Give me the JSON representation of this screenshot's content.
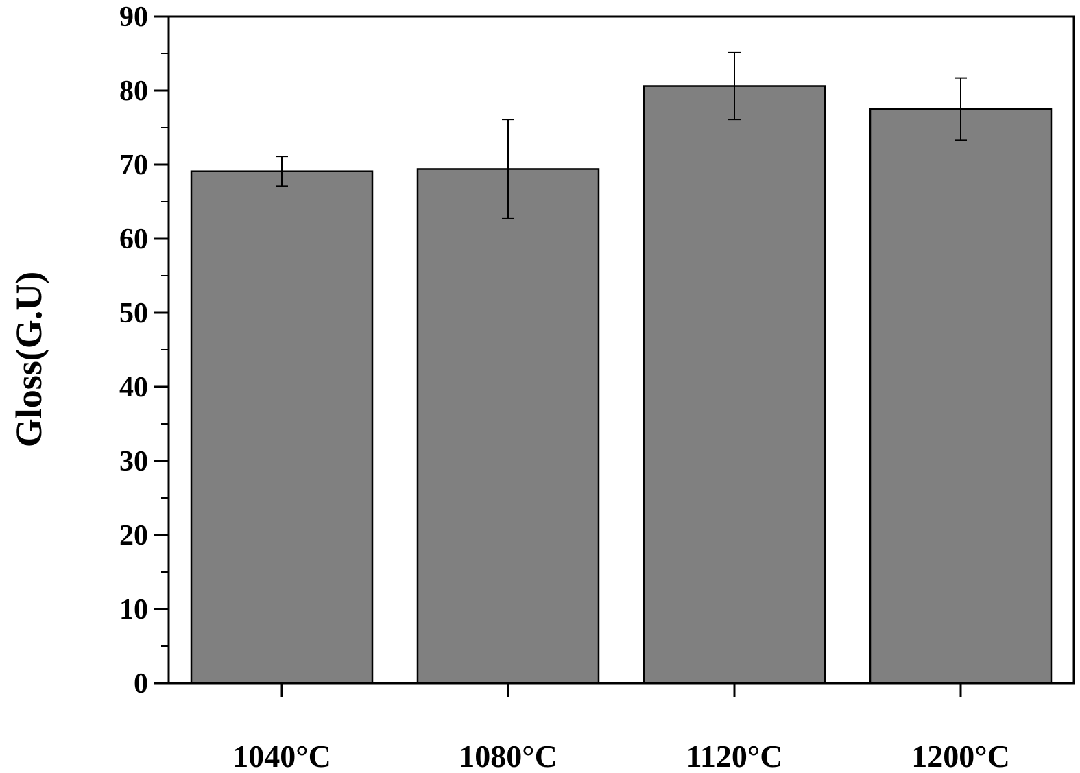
{
  "chart_data": {
    "type": "bar",
    "categories": [
      "1040°C",
      "1080°C",
      "1120°C",
      "1200°C"
    ],
    "values": [
      69.1,
      69.4,
      80.6,
      77.5
    ],
    "errors": [
      2.0,
      6.7,
      4.5,
      4.2
    ],
    "ylabel": "Gloss(G.U)",
    "xlabel": "",
    "title": "",
    "ylim": [
      0,
      90
    ],
    "yticks": [
      0,
      10,
      20,
      30,
      40,
      50,
      60,
      70,
      80,
      90
    ],
    "bar_color": "#808080",
    "grid": false,
    "legend": "none"
  }
}
